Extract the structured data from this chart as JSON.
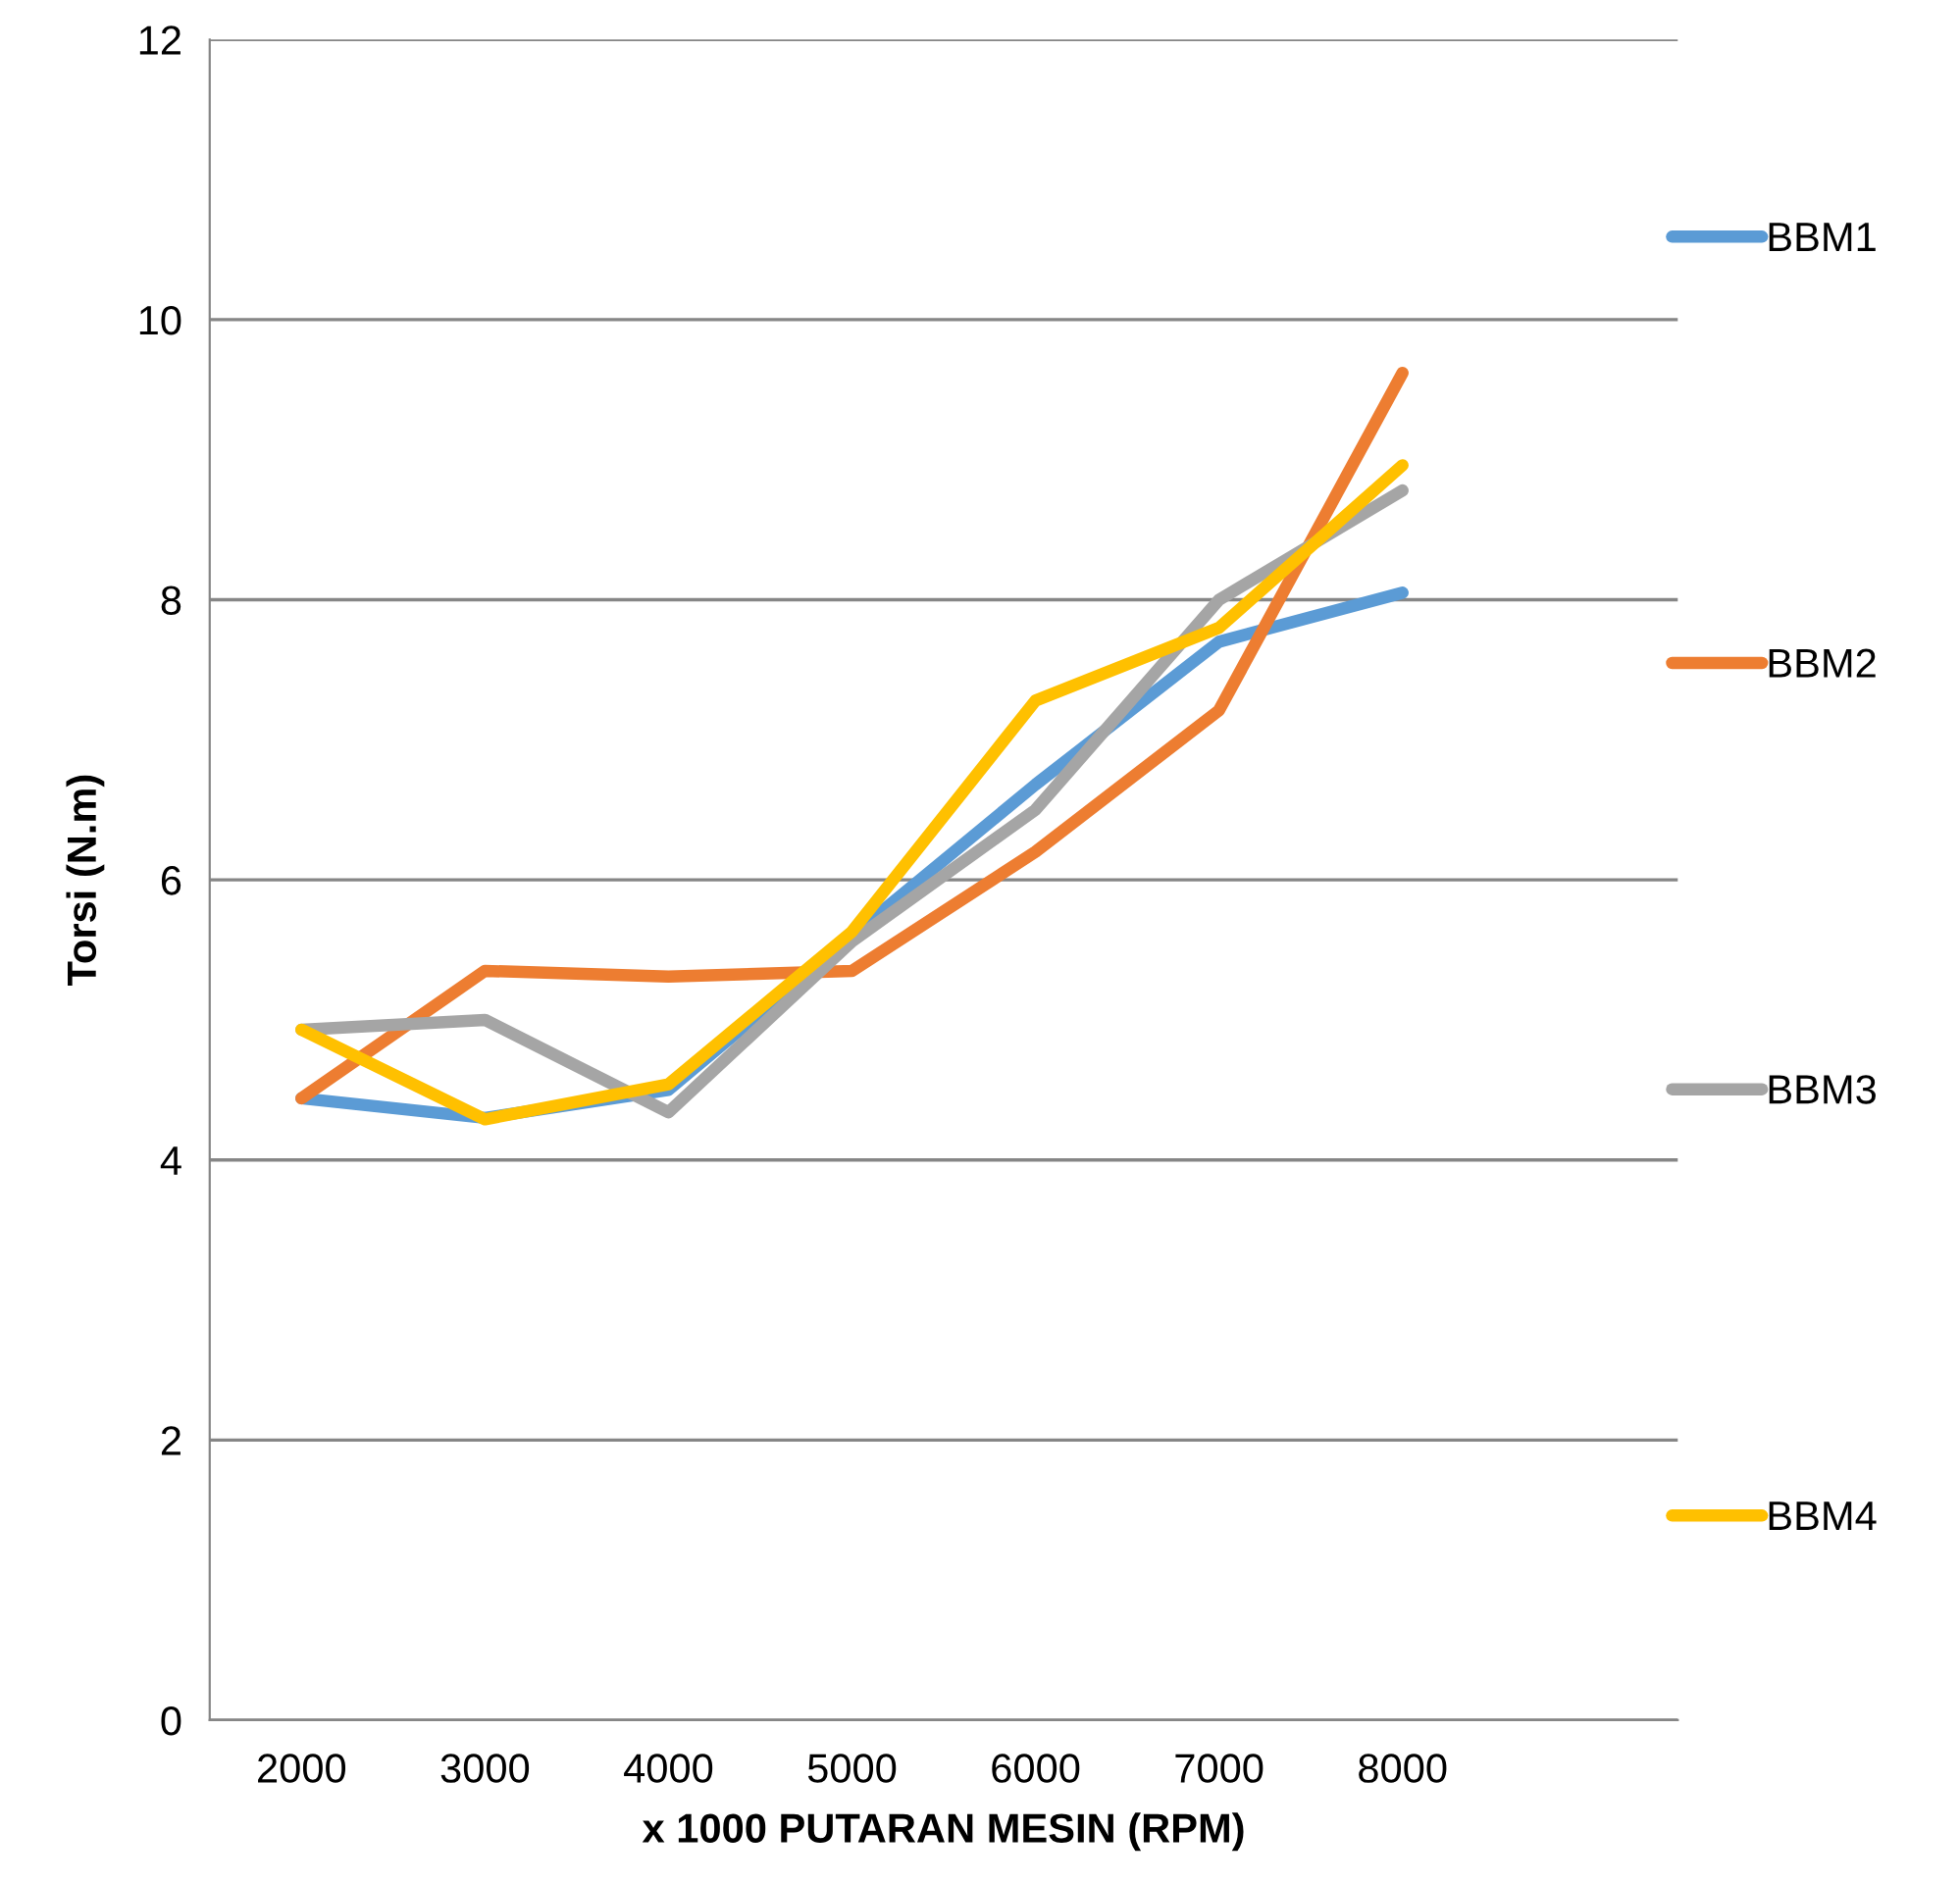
{
  "chart_data": {
    "type": "line",
    "xlabel": "x 1000 PUTARAN MESIN (RPM)",
    "ylabel": "Torsi (N.m)",
    "categories": [
      "2000",
      "3000",
      "4000",
      "5000",
      "6000",
      "7000",
      "8000",
      null
    ],
    "series": [
      {
        "name": "BBM1",
        "color": "#5b9bd5",
        "values": [
          4.44,
          4.3,
          4.5,
          5.6,
          6.68,
          7.7,
          8.05,
          null
        ]
      },
      {
        "name": "BBM2",
        "color": "#ed7d31",
        "values": [
          4.44,
          5.35,
          5.31,
          5.35,
          6.2,
          7.21,
          9.62,
          null
        ]
      },
      {
        "name": "BBM3",
        "color": "#a5a5a5",
        "values": [
          4.93,
          5.0,
          4.34,
          5.56,
          6.5,
          8.0,
          8.78,
          null
        ]
      },
      {
        "name": "BBM4",
        "color": "#ffc000",
        "values": [
          4.93,
          4.29,
          4.54,
          5.63,
          7.28,
          7.8,
          8.96,
          null
        ]
      }
    ],
    "ylim": [
      0,
      12
    ],
    "yticks": [
      0,
      2,
      4,
      6,
      8,
      10,
      12
    ],
    "grid": "y",
    "legend": "right",
    "marker": "none",
    "line_style": "solid"
  }
}
